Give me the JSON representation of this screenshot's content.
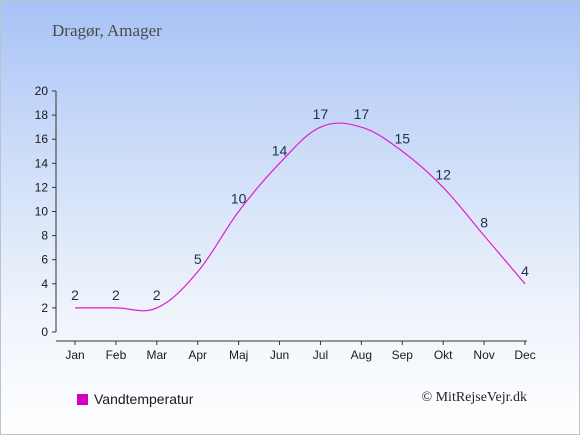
{
  "header": {
    "location": "Dragør, Amager"
  },
  "chart_data": {
    "type": "line",
    "title": "",
    "xlabel": "",
    "ylabel": "",
    "categories": [
      "Jan",
      "Feb",
      "Mar",
      "Apr",
      "Maj",
      "Jun",
      "Jul",
      "Aug",
      "Sep",
      "Okt",
      "Nov",
      "Dec"
    ],
    "series": [
      {
        "name": "Vandtemperatur",
        "values": [
          2,
          2,
          2,
          5,
          10,
          14,
          17,
          17,
          15,
          12,
          8,
          4
        ],
        "color": "#e020c8"
      }
    ],
    "ylim": [
      0,
      20
    ],
    "yticks": [
      0,
      2,
      4,
      6,
      8,
      10,
      12,
      14,
      16,
      18,
      20
    ],
    "grid": false,
    "legend_position": "bottom-left"
  },
  "legend": {
    "label": "Vandtemperatur",
    "color": "#d400c0"
  },
  "footer": {
    "credit": "© MitRejseVejr.dk"
  }
}
